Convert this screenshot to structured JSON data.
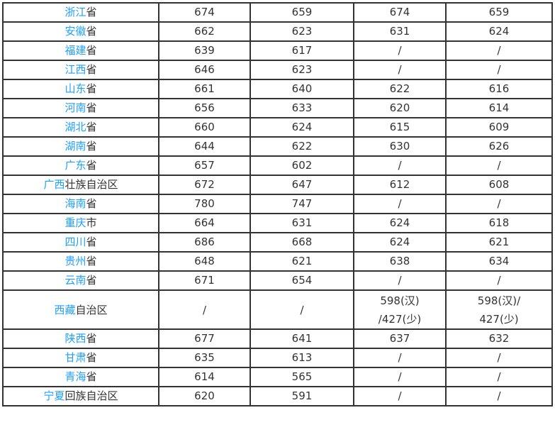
{
  "rows": [
    {
      "link": "浙江",
      "rest": "省",
      "v": [
        "674",
        "659",
        "674",
        "659"
      ]
    },
    {
      "link": "安徽",
      "rest": "省",
      "v": [
        "662",
        "623",
        "631",
        "624"
      ]
    },
    {
      "link": "福建",
      "rest": "省",
      "v": [
        "639",
        "617",
        "/",
        "/"
      ]
    },
    {
      "link": "江西",
      "rest": "省",
      "v": [
        "646",
        "623",
        "/",
        "/"
      ]
    },
    {
      "link": "山东",
      "rest": "省",
      "v": [
        "661",
        "640",
        "622",
        "616"
      ]
    },
    {
      "link": "河南",
      "rest": "省",
      "v": [
        "656",
        "633",
        "620",
        "614"
      ]
    },
    {
      "link": "湖北",
      "rest": "省",
      "v": [
        "660",
        "624",
        "615",
        "609"
      ]
    },
    {
      "link": "湖南",
      "rest": "省",
      "v": [
        "644",
        "622",
        "630",
        "626"
      ]
    },
    {
      "link": "广东",
      "rest": "省",
      "v": [
        "657",
        "602",
        "/",
        "/"
      ]
    },
    {
      "link": "广西",
      "rest": "壮族自治区",
      "v": [
        "672",
        "647",
        "612",
        "608"
      ]
    },
    {
      "link": "海南",
      "rest": "省",
      "v": [
        "780",
        "747",
        "/",
        "/"
      ]
    },
    {
      "link": "重庆",
      "rest": "市",
      "v": [
        "664",
        "631",
        "624",
        "618"
      ]
    },
    {
      "link": "四川",
      "rest": "省",
      "v": [
        "686",
        "668",
        "624",
        "621"
      ]
    },
    {
      "link": "贵州",
      "rest": "省",
      "v": [
        "648",
        "621",
        "638",
        "634"
      ]
    },
    {
      "link": "云南",
      "rest": "省",
      "v": [
        "671",
        "654",
        "/",
        "/"
      ]
    },
    {
      "link": "西藏",
      "rest": "自治区",
      "v": [
        "/",
        "/",
        "598(汉)",
        "598(汉)/"
      ],
      "v2": [
        "",
        "",
        "/427(少)",
        "427(少)"
      ]
    },
    {
      "link": "陕西",
      "rest": "省",
      "v": [
        "677",
        "641",
        "637",
        "632"
      ]
    },
    {
      "link": "甘肃",
      "rest": "省",
      "v": [
        "635",
        "613",
        "/",
        "/"
      ]
    },
    {
      "link": "青海",
      "rest": "省",
      "v": [
        "614",
        "565",
        "/",
        "/"
      ]
    },
    {
      "link": "宁夏",
      "rest": "回族自治区",
      "v": [
        "620",
        "591",
        "/",
        "/"
      ]
    }
  ]
}
